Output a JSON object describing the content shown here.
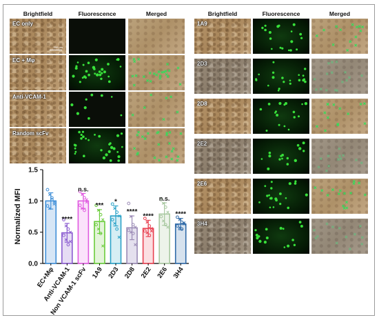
{
  "left_panel": {
    "headers": [
      "Brightfield",
      "Fluorescence",
      "Merged"
    ],
    "rows": [
      {
        "label": "EC only",
        "density": 0
      },
      {
        "label": "EC + Mφ",
        "density": 30
      },
      {
        "label": "Anti-VCAM-1",
        "density": 9
      },
      {
        "label": "Random scFv",
        "density": 30
      }
    ],
    "scale_bar": "200 μm"
  },
  "right_panel": {
    "headers": [
      "Brightfield",
      "Fluorescence",
      "Merged"
    ],
    "rows": [
      {
        "label": "1A9",
        "density": 18
      },
      {
        "label": "2D3",
        "density": 20
      },
      {
        "label": "2D8",
        "density": 17
      },
      {
        "label": "2E2",
        "density": 15
      },
      {
        "label": "2E6",
        "density": 20
      },
      {
        "label": "3H4",
        "density": 16
      }
    ]
  },
  "colors": {
    "fluor_green": "#38e03a",
    "merged_green": "#2ee05a"
  },
  "chart_data": {
    "type": "bar",
    "ylabel": "Normalized MFI",
    "ylim": [
      0,
      1.5
    ],
    "yticks": [
      "0.0",
      "0.5",
      "1.0",
      "1.5"
    ],
    "categories": [
      "EC+Mφ",
      "Anti-VCAM-1",
      "Non VCAM-1 scFv",
      "1A9",
      "2D3",
      "2D8",
      "2E2",
      "2E6",
      "3H4"
    ],
    "values": [
      1.0,
      0.49,
      1.0,
      0.67,
      0.76,
      0.57,
      0.56,
      0.79,
      0.63
    ],
    "errors": [
      0.13,
      0.15,
      0.12,
      0.19,
      0.16,
      0.19,
      0.13,
      0.18,
      0.09
    ],
    "significance": [
      "",
      "****",
      "n.s.",
      "***",
      "*",
      "****",
      "****",
      "n.s.",
      "****"
    ],
    "colors": [
      "#3f8fd8",
      "#8a5bd0",
      "#e05ae0",
      "#6acc3a",
      "#2aa2c8",
      "#9a8ab5",
      "#e84050",
      "#a8c8a0",
      "#2f6aa8"
    ],
    "fills": [
      "#d6e6f6",
      "#e6dcf4",
      "#fbe2fb",
      "#e4f4da",
      "#d6eef4",
      "#e4e0ee",
      "#fbdfe2",
      "#edf3ea",
      "#d6e2ee"
    ],
    "points": [
      [
        1.18,
        1.1,
        1.05,
        0.98,
        0.92,
        0.88,
        1.02,
        0.95
      ],
      [
        0.7,
        0.6,
        0.55,
        0.5,
        0.45,
        0.38,
        0.3,
        0.35
      ],
      [
        1.15,
        1.1,
        1.05,
        0.98,
        0.93,
        0.88,
        0.85,
        1.02
      ],
      [
        0.93,
        0.85,
        0.78,
        0.7,
        0.62,
        0.55,
        0.48,
        0.28
      ],
      [
        0.95,
        0.88,
        0.82,
        0.76,
        0.7,
        0.64,
        0.55,
        0.42
      ],
      [
        0.96,
        0.75,
        0.62,
        0.58,
        0.53,
        0.5,
        0.48,
        0.3
      ],
      [
        0.72,
        0.66,
        0.6,
        0.56,
        0.52,
        0.49,
        0.45,
        0.52
      ],
      [
        1.02,
        0.96,
        0.9,
        0.82,
        0.75,
        0.68,
        0.62,
        0.58
      ],
      [
        0.74,
        0.7,
        0.66,
        0.63,
        0.6,
        0.57,
        0.55,
        0.65
      ]
    ]
  }
}
